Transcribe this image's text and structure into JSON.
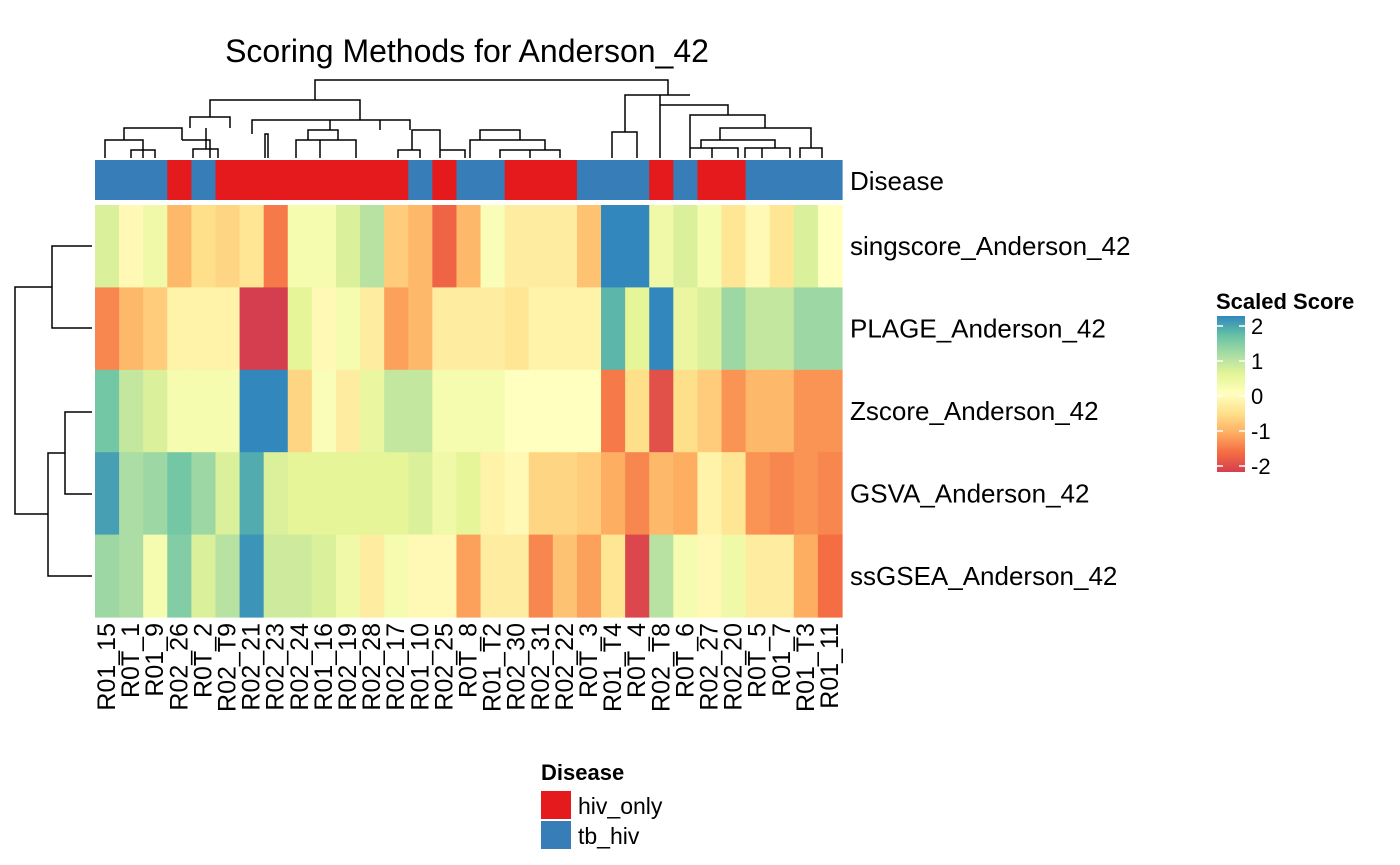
{
  "chart_data": {
    "type": "heatmap",
    "title": "Scoring Methods for Anderson_42",
    "annotation": {
      "name": "Disease",
      "levels": [
        "hiv_only",
        "tb_hiv"
      ],
      "colors": {
        "hiv_only": "#E41A1C",
        "tb_hiv": "#377EB8"
      }
    },
    "columns": [
      {
        "label": "R01_15",
        "disease": "tb_hiv"
      },
      {
        "label": "R0T_1",
        "disease": "tb_hiv"
      },
      {
        "label": "R01_9",
        "disease": "tb_hiv"
      },
      {
        "label": "R02_26",
        "disease": "hiv_only"
      },
      {
        "label": "R0T_2",
        "disease": "tb_hiv"
      },
      {
        "label": "R02_T9",
        "disease": "hiv_only"
      },
      {
        "label": "R02_21",
        "disease": "hiv_only"
      },
      {
        "label": "R02_23",
        "disease": "hiv_only"
      },
      {
        "label": "R02_24",
        "disease": "hiv_only"
      },
      {
        "label": "R01_16",
        "disease": "hiv_only"
      },
      {
        "label": "R02_19",
        "disease": "hiv_only"
      },
      {
        "label": "R02_28",
        "disease": "hiv_only"
      },
      {
        "label": "R02_17",
        "disease": "hiv_only"
      },
      {
        "label": "R01_10",
        "disease": "tb_hiv"
      },
      {
        "label": "R02_25",
        "disease": "hiv_only"
      },
      {
        "label": "R0T_8",
        "disease": "tb_hiv"
      },
      {
        "label": "R01_T2",
        "disease": "tb_hiv"
      },
      {
        "label": "R02_30",
        "disease": "hiv_only"
      },
      {
        "label": "R02_31",
        "disease": "hiv_only"
      },
      {
        "label": "R02_22",
        "disease": "hiv_only"
      },
      {
        "label": "R0T_3",
        "disease": "tb_hiv"
      },
      {
        "label": "R01_T4",
        "disease": "tb_hiv"
      },
      {
        "label": "R0T_4",
        "disease": "tb_hiv"
      },
      {
        "label": "R02_T8",
        "disease": "hiv_only"
      },
      {
        "label": "R0T_6",
        "disease": "tb_hiv"
      },
      {
        "label": "R02_27",
        "disease": "hiv_only"
      },
      {
        "label": "R02_20",
        "disease": "hiv_only"
      },
      {
        "label": "R0T_5",
        "disease": "tb_hiv"
      },
      {
        "label": "R01_7",
        "disease": "tb_hiv"
      },
      {
        "label": "R01_T3",
        "disease": "tb_hiv"
      },
      {
        "label": "R01_11",
        "disease": "tb_hiv"
      }
    ],
    "rows": [
      "singscore_Anderson_42",
      "PLAGE_Anderson_42",
      "Zscore_Anderson_42",
      "GSVA_Anderson_42",
      "ssGSEA_Anderson_42"
    ],
    "values": [
      [
        0.6,
        -0.1,
        0.3,
        -0.9,
        -0.5,
        -0.6,
        -0.4,
        -1.4,
        0.2,
        0.2,
        0.6,
        0.9,
        -0.7,
        -0.9,
        -1.6,
        -0.9,
        0.1,
        -0.3,
        -0.3,
        -0.3,
        -0.8,
        2.0,
        2.0,
        0.3,
        0.6,
        0.2,
        -0.4,
        -0.1,
        -0.4,
        0.6,
        0.0
      ],
      [
        -1.3,
        -0.9,
        -0.7,
        -0.2,
        -0.2,
        -0.2,
        -2.0,
        -2.0,
        0.5,
        -0.1,
        0.2,
        -0.3,
        -1.1,
        -0.9,
        -0.3,
        -0.3,
        -0.3,
        -0.4,
        -0.2,
        -0.2,
        -0.2,
        1.6,
        0.5,
        2.0,
        0.4,
        0.6,
        1.1,
        0.8,
        0.8,
        1.1,
        1.1
      ],
      [
        1.4,
        0.8,
        0.6,
        0.2,
        0.2,
        0.2,
        2.0,
        2.0,
        -0.6,
        0.1,
        -0.3,
        0.4,
        0.8,
        0.8,
        0.2,
        0.2,
        0.2,
        0.0,
        0.0,
        0.0,
        0.0,
        -1.4,
        -0.5,
        -1.8,
        -0.5,
        -0.7,
        -1.2,
        -0.9,
        -0.9,
        -1.2,
        -1.2
      ],
      [
        1.8,
        1.0,
        1.1,
        1.4,
        1.1,
        0.6,
        1.7,
        0.6,
        0.5,
        0.5,
        0.5,
        0.5,
        0.5,
        0.6,
        0.3,
        0.5,
        -0.2,
        -0.1,
        -0.6,
        -0.6,
        -0.7,
        -1.0,
        -1.3,
        -0.9,
        -1.0,
        -0.2,
        -0.4,
        -1.2,
        -1.3,
        -1.2,
        -1.3
      ],
      [
        1.1,
        1.0,
        0.2,
        1.3,
        0.6,
        0.9,
        1.9,
        0.7,
        0.7,
        0.6,
        0.3,
        -0.3,
        0.2,
        -0.1,
        -0.1,
        -1.1,
        -0.3,
        -0.3,
        -1.3,
        -0.8,
        -1.1,
        -0.4,
        -1.9,
        0.9,
        0.2,
        -0.1,
        0.3,
        -0.3,
        -0.3,
        -1.0,
        -1.5
      ]
    ],
    "legend": {
      "title": "Scaled Score",
      "range": [
        -2,
        2
      ],
      "ticks": [
        "2",
        "1",
        "0",
        "-1",
        "-2"
      ],
      "palette": [
        "#D53E4F",
        "#F46D43",
        "#FDAE61",
        "#FEE08B",
        "#FFFFBF",
        "#E6F598",
        "#ABDDA4",
        "#66C2A5",
        "#3288BD"
      ],
      "placement": "right"
    }
  }
}
